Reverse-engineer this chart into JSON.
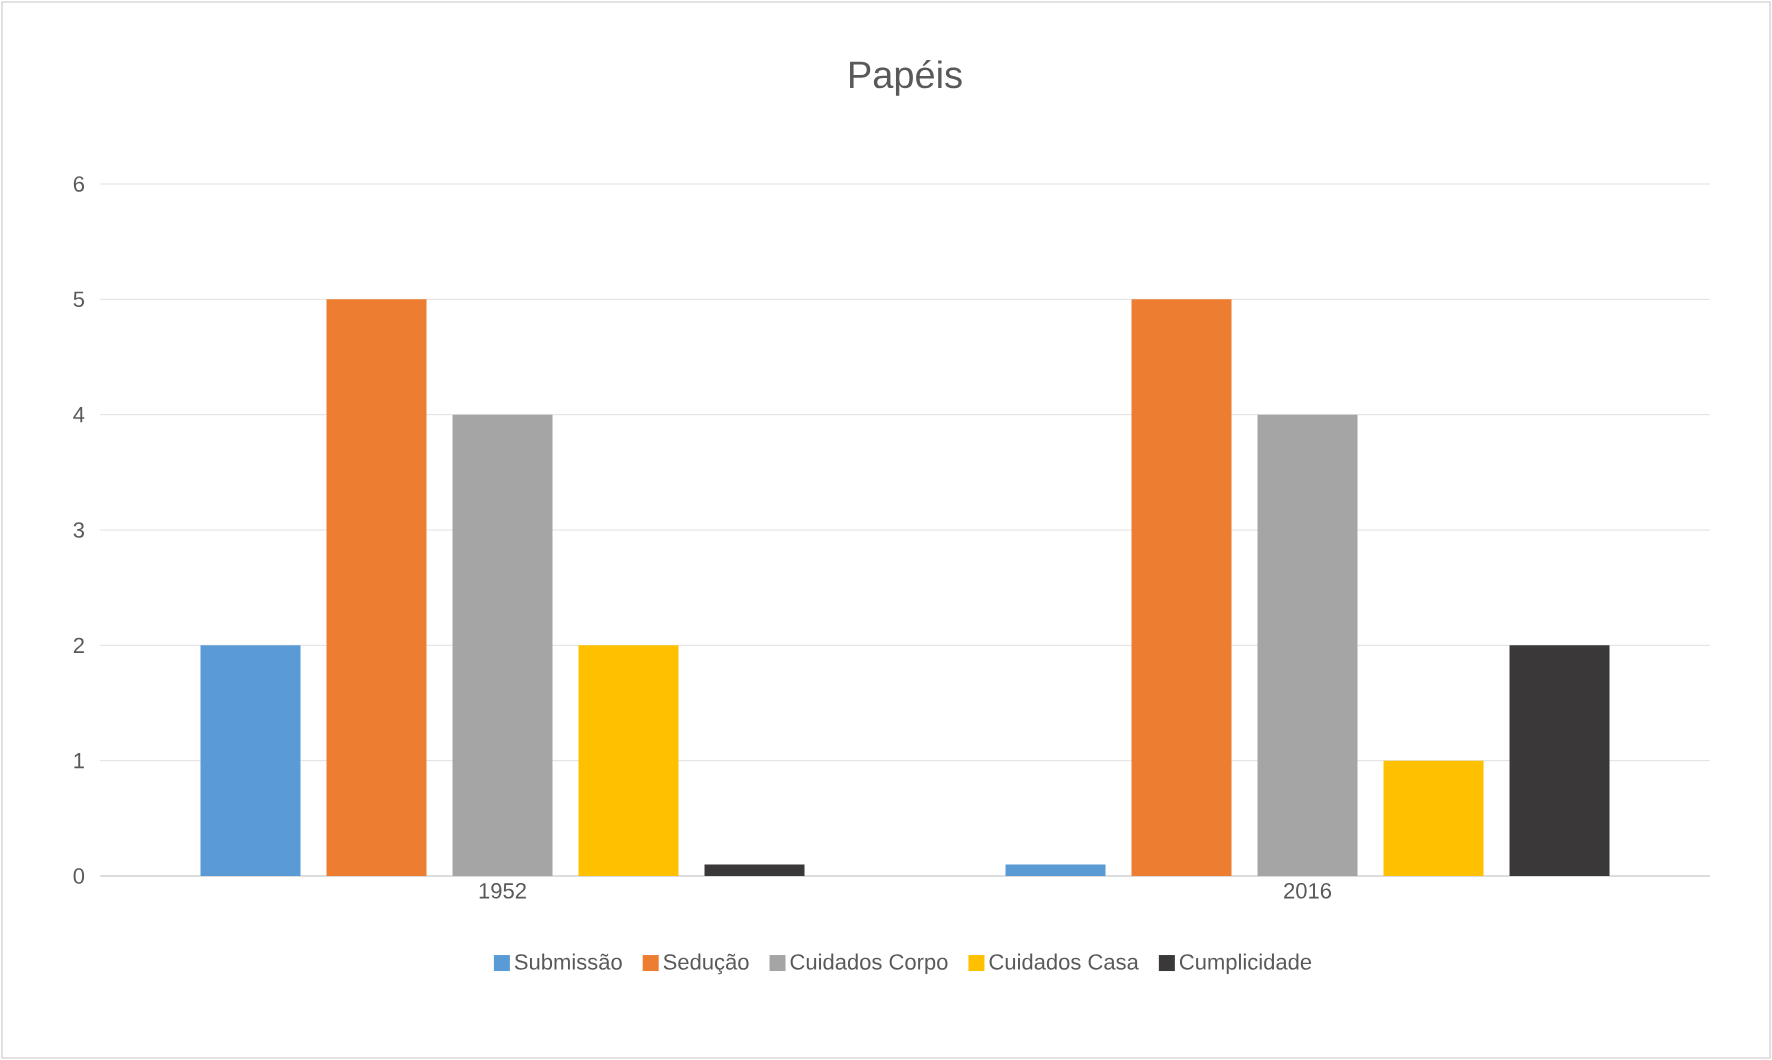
{
  "chart_data": {
    "type": "bar",
    "title": "Papéis",
    "categories": [
      "1952",
      "2016"
    ],
    "series": [
      {
        "name": "Submissão",
        "color": "#5b9bd5",
        "values": [
          2,
          0.1
        ]
      },
      {
        "name": "Sedução",
        "color": "#ed7d31",
        "values": [
          5,
          5
        ]
      },
      {
        "name": "Cuidados Corpo",
        "color": "#a5a5a5",
        "values": [
          4,
          4
        ]
      },
      {
        "name": "Cuidados Casa",
        "color": "#ffc000",
        "values": [
          2,
          1
        ]
      },
      {
        "name": "Cumplicidade",
        "color": "#3a3838",
        "values": [
          0.1,
          2
        ]
      }
    ],
    "ylim": [
      0,
      6
    ],
    "yticks": [
      0,
      1,
      2,
      3,
      4,
      5,
      6
    ],
    "grid": "y",
    "legend": "bottom"
  }
}
